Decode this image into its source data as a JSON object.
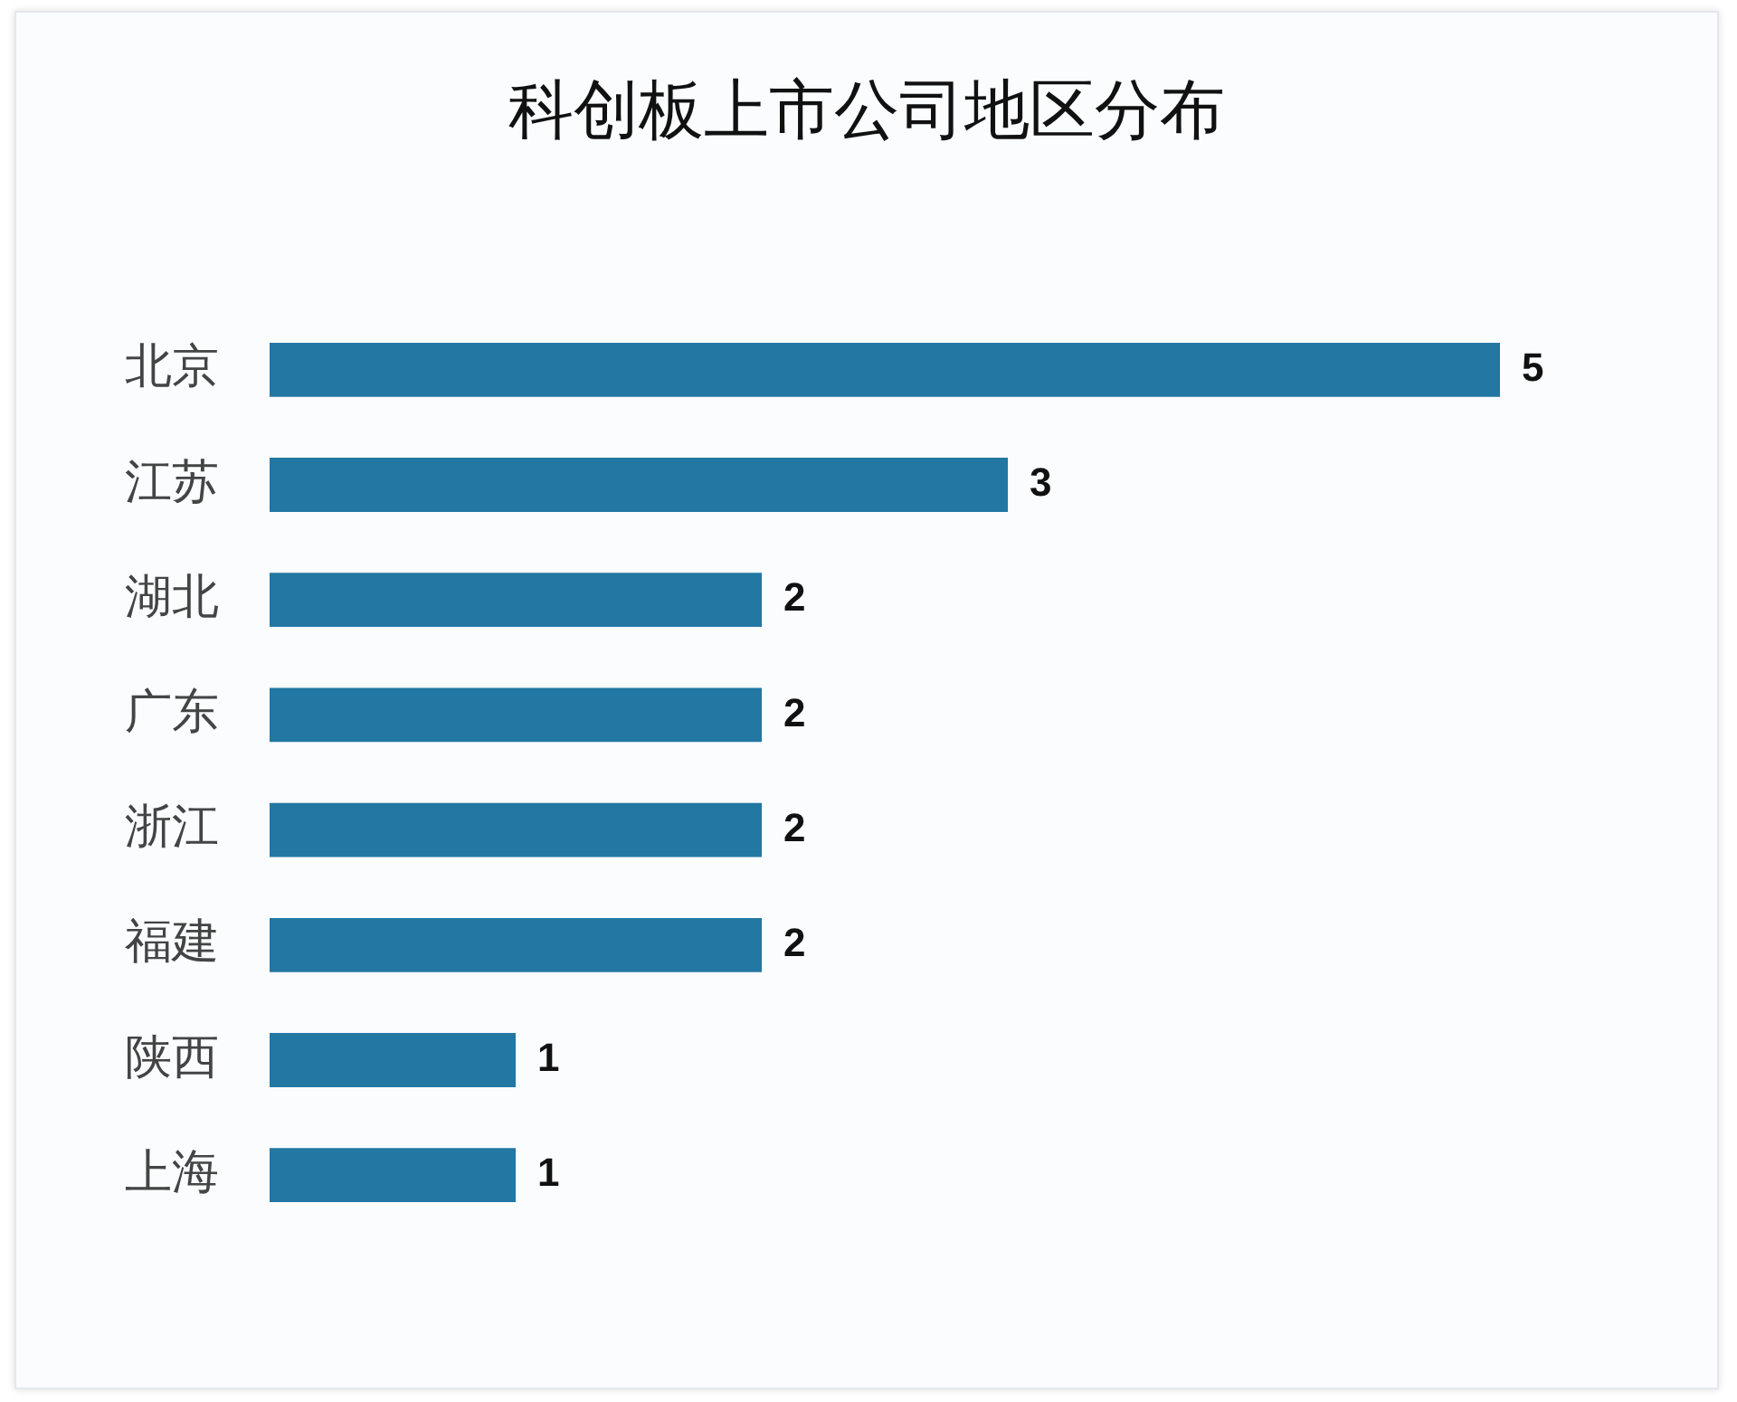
{
  "chart_data": {
    "type": "bar",
    "orientation": "horizontal",
    "title": "科创板上市公司地区分布",
    "categories": [
      "北京",
      "江苏",
      "湖北",
      "广东",
      "浙江",
      "福建",
      "陕西",
      "上海"
    ],
    "values": [
      5,
      3,
      2,
      2,
      2,
      2,
      1,
      1
    ],
    "color": "#2277a3",
    "data_labels": true,
    "legend": false,
    "tick_labels": "y"
  }
}
